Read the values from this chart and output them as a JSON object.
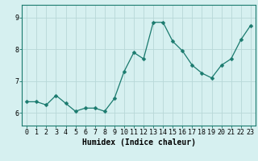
{
  "x": [
    0,
    1,
    2,
    3,
    4,
    5,
    6,
    7,
    8,
    9,
    10,
    11,
    12,
    13,
    14,
    15,
    16,
    17,
    18,
    19,
    20,
    21,
    22,
    23
  ],
  "y": [
    6.35,
    6.35,
    6.25,
    6.55,
    6.3,
    6.05,
    6.15,
    6.15,
    6.05,
    6.45,
    7.3,
    7.9,
    7.7,
    8.85,
    8.85,
    8.25,
    7.95,
    7.5,
    7.25,
    7.1,
    7.5,
    7.7,
    8.3,
    8.75
  ],
  "line_color": "#1a7a6e",
  "marker": "D",
  "marker_size": 2.5,
  "bg_color": "#d6f0f0",
  "grid_color": "#b8d8d8",
  "xlabel": "Humidex (Indice chaleur)",
  "xlabel_fontsize": 7,
  "tick_fontsize": 6,
  "ylim": [
    5.6,
    9.4
  ],
  "xlim": [
    -0.5,
    23.5
  ],
  "yticks": [
    6,
    7,
    8,
    9
  ],
  "xticks": [
    0,
    1,
    2,
    3,
    4,
    5,
    6,
    7,
    8,
    9,
    10,
    11,
    12,
    13,
    14,
    15,
    16,
    17,
    18,
    19,
    20,
    21,
    22,
    23
  ]
}
